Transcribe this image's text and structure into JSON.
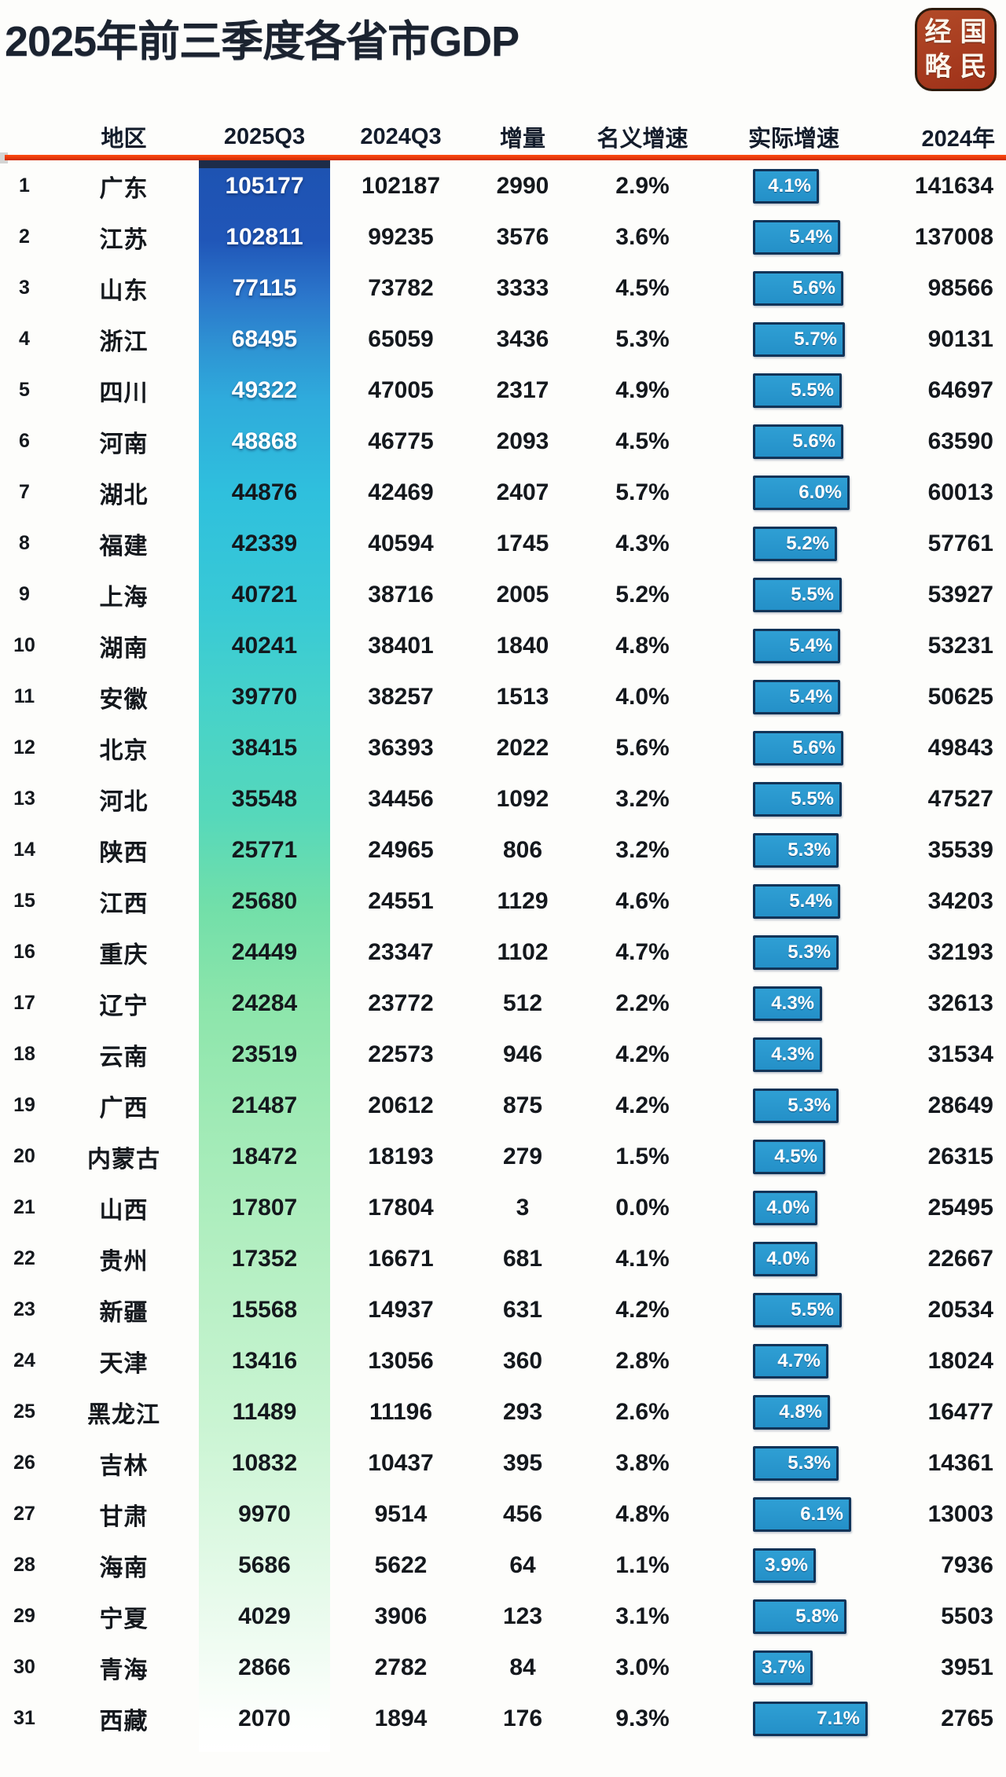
{
  "title": "2025年前三季度各省市GDP",
  "logo": {
    "chars": [
      "经",
      "国",
      "略",
      "民"
    ]
  },
  "colors": {
    "accent_red_line": "#e63c10",
    "band_top_blue": "#2056b8",
    "band_mid_teal": "#46d2ca",
    "band_bottom_green": "#daf8e0",
    "badge_fill": "#2a9ad0",
    "badge_border": "#123458",
    "logo_background": "#a83c1e"
  },
  "chart_data": {
    "type": "table",
    "title": "2025年前三季度各省市GDP",
    "columns": [
      "地区",
      "2025Q3",
      "2024Q3",
      "增量",
      "名义增速",
      "实际增速",
      "2024年"
    ],
    "highlight_column": "2025Q3",
    "real_growth_rendered_as": "blue bar badge, width proportional to value",
    "rows": [
      [
        1,
        "广东",
        105177,
        102187,
        2990,
        "2.9%",
        "4.1%",
        141634
      ],
      [
        2,
        "江苏",
        102811,
        99235,
        3576,
        "3.6%",
        "5.4%",
        137008
      ],
      [
        3,
        "山东",
        77115,
        73782,
        3333,
        "4.5%",
        "5.6%",
        98566
      ],
      [
        4,
        "浙江",
        68495,
        65059,
        3436,
        "5.3%",
        "5.7%",
        90131
      ],
      [
        5,
        "四川",
        49322,
        47005,
        2317,
        "4.9%",
        "5.5%",
        64697
      ],
      [
        6,
        "河南",
        48868,
        46775,
        2093,
        "4.5%",
        "5.6%",
        63590
      ],
      [
        7,
        "湖北",
        44876,
        42469,
        2407,
        "5.7%",
        "6.0%",
        60013
      ],
      [
        8,
        "福建",
        42339,
        40594,
        1745,
        "4.3%",
        "5.2%",
        57761
      ],
      [
        9,
        "上海",
        40721,
        38716,
        2005,
        "5.2%",
        "5.5%",
        53927
      ],
      [
        10,
        "湖南",
        40241,
        38401,
        1840,
        "4.8%",
        "5.4%",
        53231
      ],
      [
        11,
        "安徽",
        39770,
        38257,
        1513,
        "4.0%",
        "5.4%",
        50625
      ],
      [
        12,
        "北京",
        38415,
        36393,
        2022,
        "5.6%",
        "5.6%",
        49843
      ],
      [
        13,
        "河北",
        35548,
        34456,
        1092,
        "3.2%",
        "5.5%",
        47527
      ],
      [
        14,
        "陕西",
        25771,
        24965,
        806,
        "3.2%",
        "5.3%",
        35539
      ],
      [
        15,
        "江西",
        25680,
        24551,
        1129,
        "4.6%",
        "5.4%",
        34203
      ],
      [
        16,
        "重庆",
        24449,
        23347,
        1102,
        "4.7%",
        "5.3%",
        32193
      ],
      [
        17,
        "辽宁",
        24284,
        23772,
        512,
        "2.2%",
        "4.3%",
        32613
      ],
      [
        18,
        "云南",
        23519,
        22573,
        946,
        "4.2%",
        "4.3%",
        31534
      ],
      [
        19,
        "广西",
        21487,
        20612,
        875,
        "4.2%",
        "5.3%",
        28649
      ],
      [
        20,
        "内蒙古",
        18472,
        18193,
        279,
        "1.5%",
        "4.5%",
        26315
      ],
      [
        21,
        "山西",
        17807,
        17804,
        3,
        "0.0%",
        "4.0%",
        25495
      ],
      [
        22,
        "贵州",
        17352,
        16671,
        681,
        "4.1%",
        "4.0%",
        22667
      ],
      [
        23,
        "新疆",
        15568,
        14937,
        631,
        "4.2%",
        "5.5%",
        20534
      ],
      [
        24,
        "天津",
        13416,
        13056,
        360,
        "2.8%",
        "4.7%",
        18024
      ],
      [
        25,
        "黑龙江",
        11489,
        11196,
        293,
        "2.6%",
        "4.8%",
        16477
      ],
      [
        26,
        "吉林",
        10832,
        10437,
        395,
        "3.8%",
        "5.3%",
        14361
      ],
      [
        27,
        "甘肃",
        9970,
        9514,
        456,
        "4.8%",
        "6.1%",
        13003
      ],
      [
        28,
        "海南",
        5686,
        5622,
        64,
        "1.1%",
        "3.9%",
        7936
      ],
      [
        29,
        "宁夏",
        4029,
        3906,
        123,
        "3.1%",
        "5.8%",
        5503
      ],
      [
        30,
        "青海",
        2866,
        2782,
        84,
        "3.0%",
        "3.7%",
        3951
      ],
      [
        31,
        "西藏",
        2070,
        1894,
        176,
        "9.3%",
        "7.1%",
        2765
      ]
    ]
  }
}
